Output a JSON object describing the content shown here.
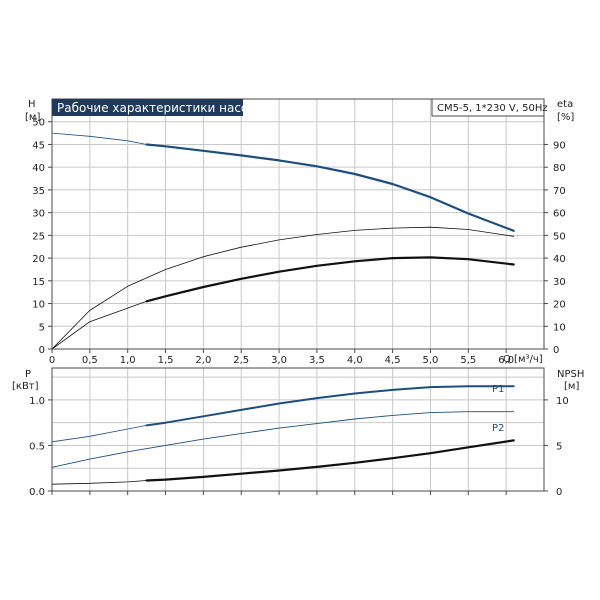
{
  "title": "Рабочие характеристики насоса",
  "model": "CM5-5, 1*230 V, 50Hz",
  "colors": {
    "frame": "#4a4a4a",
    "grid": "#c8c8c8",
    "titleBg": "#1f3a5a",
    "blue": "#1e4e7e",
    "black": "#111111"
  },
  "chart_data": [
    {
      "type": "line",
      "x_label": "Q [м³/ч]",
      "x_ticks": [
        "0",
        "0,5",
        "1,0",
        "1,5",
        "2,0",
        "2,5",
        "3,0",
        "3,5",
        "4,0",
        "4,5",
        "5,0",
        "5,5",
        "6,0"
      ],
      "xlim": [
        0,
        6.5
      ],
      "left_axis": {
        "label_line1": "H",
        "label_line2": "[м]",
        "ticks": [
          "0",
          "5",
          "10",
          "15",
          "20",
          "25",
          "30",
          "35",
          "40",
          "45",
          "50"
        ],
        "lim": [
          0,
          55
        ]
      },
      "right_axis": {
        "label_line1": "eta",
        "label_line2": "[%]",
        "ticks": [
          "0",
          "10",
          "20",
          "30",
          "40",
          "50",
          "60",
          "70",
          "80",
          "90"
        ],
        "lim": [
          0,
          110
        ]
      },
      "grid": true,
      "series": [
        {
          "axis": "left",
          "style": "head",
          "points": [
            [
              0,
              47.5
            ],
            [
              0.5,
              46.8
            ],
            [
              1.0,
              45.8
            ],
            [
              1.25,
              45.0
            ],
            [
              1.5,
              44.6
            ],
            [
              2.0,
              43.6
            ],
            [
              2.5,
              42.6
            ],
            [
              3.0,
              41.5
            ],
            [
              3.5,
              40.2
            ],
            [
              4.0,
              38.5
            ],
            [
              4.5,
              36.3
            ],
            [
              5.0,
              33.4
            ],
            [
              5.5,
              29.8
            ],
            [
              6.1,
              26.0
            ]
          ],
          "bold_from": 1.25
        },
        {
          "axis": "left",
          "style": "thin",
          "points": [
            [
              0,
              0
            ],
            [
              0.5,
              8.5
            ],
            [
              1.0,
              13.8
            ],
            [
              1.5,
              17.5
            ],
            [
              2.0,
              20.3
            ],
            [
              2.5,
              22.4
            ],
            [
              3.0,
              24.0
            ],
            [
              3.5,
              25.2
            ],
            [
              4.0,
              26.1
            ],
            [
              4.5,
              26.6
            ],
            [
              5.0,
              26.8
            ],
            [
              5.5,
              26.3
            ],
            [
              6.1,
              24.8
            ]
          ],
          "bold_from": null
        },
        {
          "axis": "right",
          "style": "eta",
          "points": [
            [
              0,
              0
            ],
            [
              0.5,
              12.0
            ],
            [
              1.0,
              18.0
            ],
            [
              1.25,
              21.0
            ],
            [
              1.5,
              23.2
            ],
            [
              2.0,
              27.3
            ],
            [
              2.5,
              30.9
            ],
            [
              3.0,
              34.0
            ],
            [
              3.5,
              36.6
            ],
            [
              4.0,
              38.6
            ],
            [
              4.5,
              40.0
            ],
            [
              5.0,
              40.3
            ],
            [
              5.5,
              39.5
            ],
            [
              6.1,
              37.2
            ]
          ],
          "bold_from": 1.25
        }
      ]
    },
    {
      "type": "line",
      "left_axis": {
        "label_line1": "P",
        "label_line2": "[кВт]",
        "ticks": [
          "0.0",
          "0.5",
          "1.0"
        ],
        "lim": [
          0,
          1.35
        ]
      },
      "right_axis": {
        "label_line1": "NPSH",
        "label_line2": "[м]",
        "ticks": [
          "0",
          "5",
          "10"
        ],
        "lim": [
          0,
          13.5
        ]
      },
      "xlim": [
        0,
        6.5
      ],
      "grid": true,
      "series": [
        {
          "name": "P1",
          "axis": "left",
          "style": "power",
          "points": [
            [
              0,
              0.54
            ],
            [
              0.5,
              0.6
            ],
            [
              1.0,
              0.68
            ],
            [
              1.25,
              0.72
            ],
            [
              1.5,
              0.75
            ],
            [
              2.0,
              0.82
            ],
            [
              2.5,
              0.89
            ],
            [
              3.0,
              0.96
            ],
            [
              3.5,
              1.02
            ],
            [
              4.0,
              1.07
            ],
            [
              4.5,
              1.11
            ],
            [
              5.0,
              1.14
            ],
            [
              5.5,
              1.15
            ],
            [
              6.1,
              1.15
            ]
          ],
          "bold_from": 1.25
        },
        {
          "name": "P2",
          "axis": "left",
          "style": "thin-blue",
          "points": [
            [
              0,
              0.26
            ],
            [
              0.5,
              0.35
            ],
            [
              1.0,
              0.43
            ],
            [
              1.5,
              0.5
            ],
            [
              2.0,
              0.57
            ],
            [
              2.5,
              0.63
            ],
            [
              3.0,
              0.69
            ],
            [
              3.5,
              0.74
            ],
            [
              4.0,
              0.79
            ],
            [
              4.5,
              0.83
            ],
            [
              5.0,
              0.86
            ],
            [
              5.5,
              0.87
            ],
            [
              6.1,
              0.87
            ]
          ],
          "bold_from": null
        },
        {
          "axis": "right",
          "style": "npsh",
          "points": [
            [
              0,
              0.75
            ],
            [
              0.5,
              0.85
            ],
            [
              1.0,
              1.0
            ],
            [
              1.25,
              1.15
            ],
            [
              1.5,
              1.25
            ],
            [
              2.0,
              1.55
            ],
            [
              2.5,
              1.9
            ],
            [
              3.0,
              2.25
            ],
            [
              3.5,
              2.65
            ],
            [
              4.0,
              3.1
            ],
            [
              4.5,
              3.6
            ],
            [
              5.0,
              4.15
            ],
            [
              5.5,
              4.8
            ],
            [
              6.1,
              5.55
            ]
          ],
          "bold_from": 1.25
        }
      ]
    }
  ]
}
